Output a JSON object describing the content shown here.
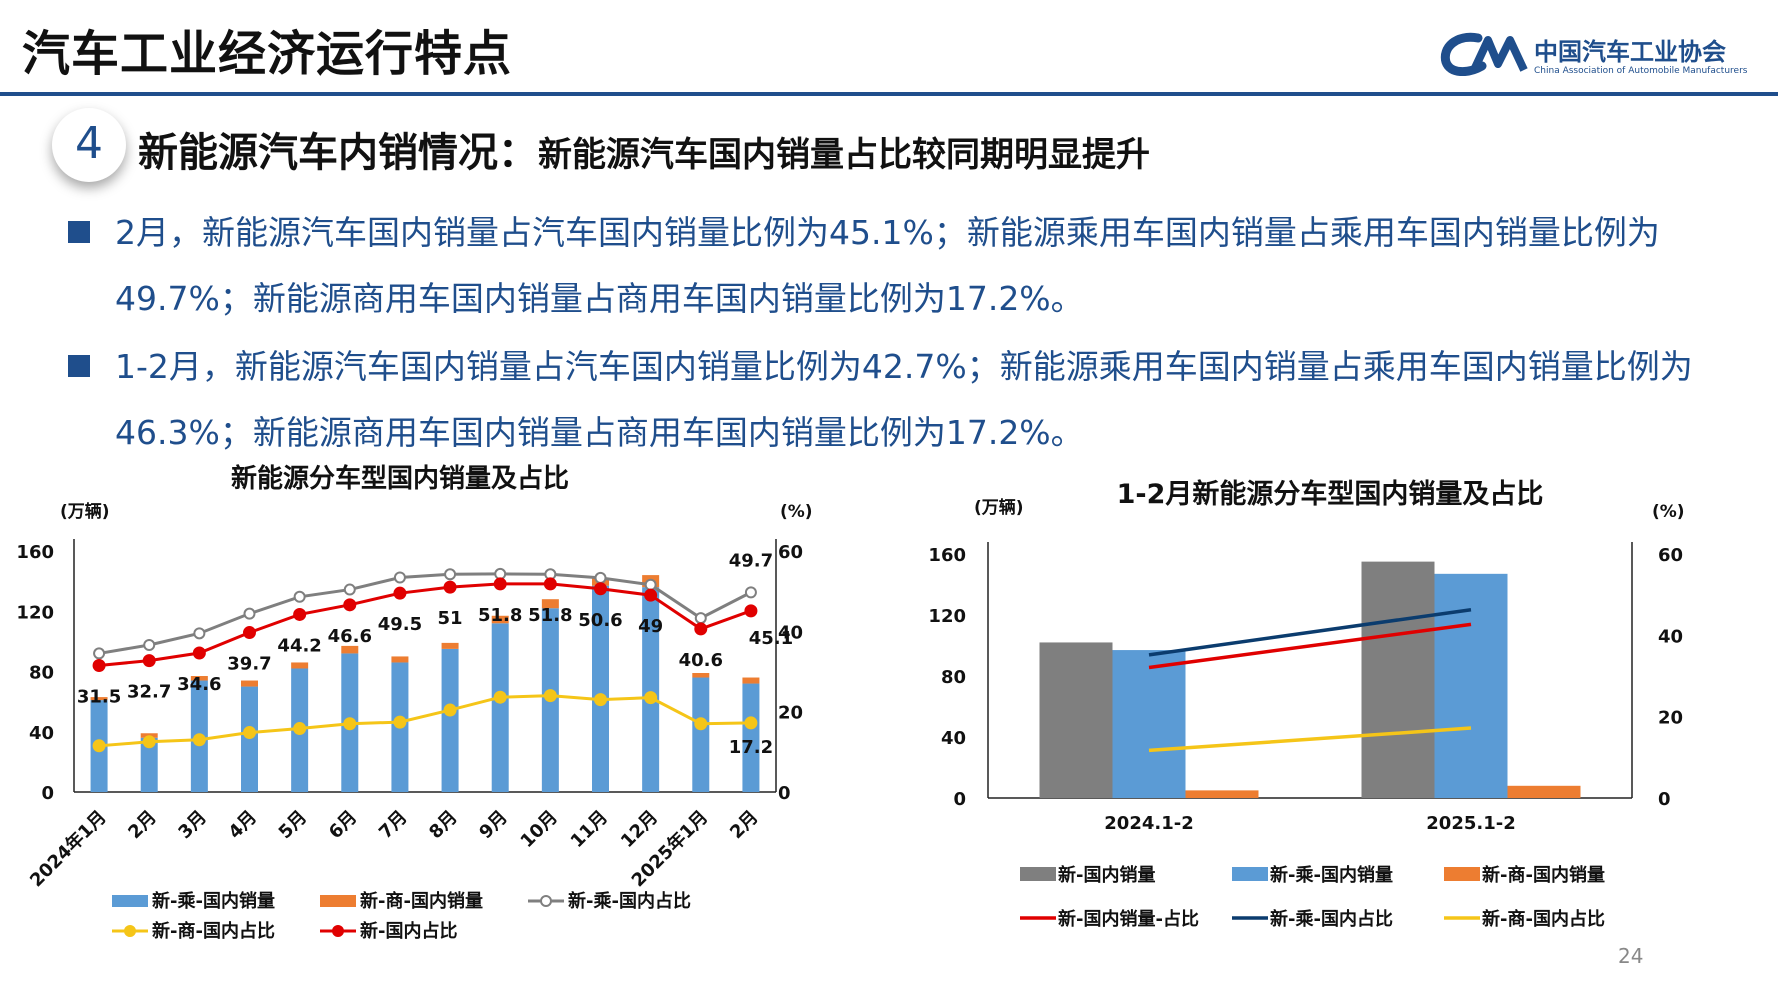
{
  "header": {
    "title": "汽车工业经济运行特点"
  },
  "logo": {
    "cn": "中国汽车工业协会",
    "en": "China Association of Automobile Manufacturers"
  },
  "section": {
    "number": "4",
    "title_main": "新能源汽车内销情况：",
    "title_sub": "新能源汽车国内销量占比较同期明显提升"
  },
  "bullets": [
    "2月，新能源汽车国内销量占汽车国内销量比例为45.1%；新能源乘用车国内销量占乘用车国内销量比例为49.7%；新能源商用车国内销量占商用车国内销量比例为17.2%。",
    "1-2月，新能源汽车国内销量占汽车国内销量比例为42.7%；新能源乘用车国内销量占乘用车国内销量比例为46.3%；新能源商用车国内销量占商用车国内销量比例为17.2%。"
  ],
  "slide_number": "24",
  "colors": {
    "brand": "#1f4e8c",
    "blue": "#5b9bd5",
    "orange": "#ed7d31",
    "gray": "#7f7f7f",
    "red": "#e00000",
    "navy": "#0b3c6e",
    "yellow": "#f5c518"
  },
  "chart_data": [
    {
      "type": "bar",
      "title": "新能源分车型国内销量及占比",
      "ylabel": "(万辆)",
      "y2label": "(%)",
      "ylim": [
        0,
        160
      ],
      "y2lim": [
        0,
        60
      ],
      "yticks": [
        "0",
        "40",
        "80",
        "120",
        "160"
      ],
      "y2ticks": [
        "0",
        "20",
        "40",
        "60"
      ],
      "categories": [
        "2024年1月",
        "2月",
        "3月",
        "4月",
        "5月",
        "6月",
        "7月",
        "8月",
        "9月",
        "10月",
        "11月",
        "12月",
        "2025年1月",
        "2月"
      ],
      "stacked_bars": [
        {
          "name": "新-乘-国内销量",
          "values": [
            61,
            36,
            74,
            70,
            82,
            92,
            86,
            95,
            112,
            122,
            137,
            136,
            76,
            72
          ]
        },
        {
          "name": "新-商-国内销量",
          "values": [
            2,
            3,
            3,
            4,
            4,
            5,
            4,
            4,
            5,
            6,
            5,
            8,
            3,
            4
          ]
        }
      ],
      "lines": [
        {
          "name": "新-乘-国内占比",
          "values": [
            34.5,
            36.6,
            39.5,
            44.4,
            48.6,
            50.4,
            53.4,
            54.2,
            54.3,
            54.2,
            53.3,
            51.6,
            43.3,
            49.7
          ]
        },
        {
          "name": "新-商-国内占比",
          "values": [
            11.5,
            12.5,
            13.0,
            14.8,
            15.8,
            17.0,
            17.4,
            20.4,
            23.6,
            24.0,
            23.0,
            23.5,
            17.0,
            17.2
          ]
        },
        {
          "name": "新-国内占比",
          "values": [
            31.5,
            32.7,
            34.6,
            39.7,
            44.2,
            46.6,
            49.5,
            51.0,
            51.8,
            51.8,
            50.6,
            49.0,
            40.6,
            45.1
          ]
        }
      ],
      "data_labels": {
        "新-国内占比": [
          "31.5",
          "32.7",
          "34.6",
          "39.7",
          "44.2",
          "46.6",
          "49.5",
          "51",
          "51.8",
          "51.8",
          "50.6",
          "49",
          "40.6",
          "45.1"
        ],
        "extra": [
          {
            "series": "新-乘-国内占比",
            "index": 13,
            "text": "49.7"
          },
          {
            "series": "新-商-国内占比",
            "index": 13,
            "text": "17.2"
          }
        ]
      },
      "legend": [
        "新-乘-国内销量",
        "新-商-国内销量",
        "新-乘-国内占比",
        "新-商-国内占比",
        "新-国内占比"
      ],
      "legend_position": "bottom"
    },
    {
      "type": "bar",
      "title": "1-2月新能源分车型国内销量及占比",
      "ylabel": "(万辆)",
      "y2label": "(%)",
      "ylim": [
        0,
        160
      ],
      "y2lim": [
        0,
        60
      ],
      "yticks": [
        "0",
        "40",
        "80",
        "120",
        "160"
      ],
      "y2ticks": [
        "0",
        "20",
        "40",
        "60"
      ],
      "categories": [
        "2024.1-2",
        "2025.1-2"
      ],
      "bars": [
        {
          "name": "新-国内销量",
          "values": [
            102,
            155
          ]
        },
        {
          "name": "新-乘-国内销量",
          "values": [
            97,
            147
          ]
        },
        {
          "name": "新-商-国内销量",
          "values": [
            5,
            8
          ]
        }
      ],
      "lines": [
        {
          "name": "新-国内销量-占比",
          "values": [
            32.1,
            42.7
          ]
        },
        {
          "name": "新-乘-国内占比",
          "values": [
            35.2,
            46.3
          ]
        },
        {
          "name": "新-商-国内占比",
          "values": [
            11.7,
            17.2
          ]
        }
      ],
      "legend": [
        "新-国内销量",
        "新-乘-国内销量",
        "新-商-国内销量",
        "新-国内销量-占比",
        "新-乘-国内占比",
        "新-商-国内占比"
      ],
      "legend_position": "bottom"
    }
  ]
}
